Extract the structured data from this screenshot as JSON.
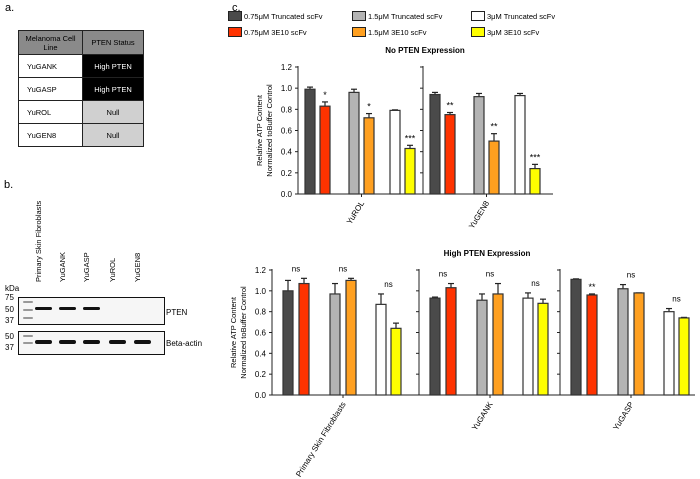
{
  "panel_labels": {
    "a": "a.",
    "b": "b.",
    "c": "c."
  },
  "table": {
    "headers": [
      "Melanoma Cell Line",
      "PTEN Status"
    ],
    "rows": [
      [
        "YuGANK",
        "High PTEN"
      ],
      [
        "YuGASP",
        "High PTEN"
      ],
      [
        "YuROL",
        "Null"
      ],
      [
        "YuGEN8",
        "Null"
      ]
    ]
  },
  "blot": {
    "lanes": [
      "Primary Skin Fibroblasts",
      "YuGANK",
      "YuGASP",
      "YuROL",
      "YuGEN8"
    ],
    "kda_label": "kDa",
    "pten_markers": [
      "75",
      "50",
      "37"
    ],
    "actin_markers": [
      "50",
      "37"
    ],
    "pten_label": "PTEN",
    "actin_label": "Beta-actin",
    "pten_band_present": [
      true,
      true,
      true,
      false,
      false
    ],
    "actin_band_present": [
      true,
      true,
      true,
      true,
      true
    ]
  },
  "legend": [
    {
      "label": "0.75μM  Truncated scFv",
      "color": "#4a4a4a"
    },
    {
      "label": "1.5μM  Truncated scFv",
      "color": "#b4b4b4"
    },
    {
      "label": "3μM  Truncated scFv",
      "color": "#ffffff"
    },
    {
      "label": "0.75μM  3E10 scFv",
      "color": "#ff3300"
    },
    {
      "label": "1.5μM  3E10 scFv",
      "color": "#ffa020"
    },
    {
      "label": "3μM  3E10 scFv",
      "color": "#ffff00"
    }
  ],
  "chart_data": [
    {
      "type": "bar",
      "title": "No PTEN Expression",
      "ylabel": [
        "Relative ATP Content",
        "Normalized toBuffer Control"
      ],
      "ylim": [
        0,
        1.2
      ],
      "yticks": [
        "0.0",
        "0.2",
        "0.4",
        "0.6",
        "0.8",
        "1.0",
        "1.2"
      ],
      "categories": [
        "YuROL",
        "YuGEN8"
      ],
      "series_order": [
        "0.75μM Truncated scFv",
        "0.75μM 3E10 scFv",
        "1.5μM Truncated scFv",
        "1.5μM 3E10 scFv",
        "3μM Truncated scFv",
        "3μM 3E10 scFv"
      ],
      "values": [
        [
          0.99,
          0.83,
          0.96,
          0.72,
          0.79,
          0.43
        ],
        [
          0.94,
          0.75,
          0.92,
          0.5,
          0.93,
          0.24
        ]
      ],
      "errors": [
        [
          0.02,
          0.04,
          0.03,
          0.04,
          0.005,
          0.03
        ],
        [
          0.02,
          0.02,
          0.03,
          0.07,
          0.02,
          0.04
        ]
      ],
      "significance": [
        [
          "*",
          "*",
          "***"
        ],
        [
          "**",
          "**",
          "***"
        ]
      ]
    },
    {
      "type": "bar",
      "title": "High PTEN Expression",
      "ylabel": [
        "Relative ATP Content",
        "Normalized toBuffer Control"
      ],
      "ylim": [
        0,
        1.2
      ],
      "yticks": [
        "0.0",
        "0.2",
        "0.4",
        "0.6",
        "0.8",
        "1.0",
        "1.2"
      ],
      "categories": [
        "Primary Skin Fibroblasts",
        "YuGANK",
        "YuGASP"
      ],
      "series_order": [
        "0.75μM Truncated scFv",
        "0.75μM 3E10 scFv",
        "1.5μM Truncated scFv",
        "1.5μM 3E10 scFv",
        "3μM Truncated scFv",
        "3μM 3E10 scFv"
      ],
      "values": [
        [
          1.0,
          1.07,
          0.97,
          1.1,
          0.87,
          0.64
        ],
        [
          0.93,
          1.03,
          0.91,
          0.97,
          0.93,
          0.88
        ],
        [
          1.11,
          0.96,
          1.02,
          0.98,
          0.8,
          0.74
        ]
      ],
      "errors": [
        [
          0.1,
          0.05,
          0.1,
          0.02,
          0.1,
          0.05
        ],
        [
          0.01,
          0.04,
          0.06,
          0.1,
          0.05,
          0.04
        ],
        [
          0.005,
          0.01,
          0.04,
          0.0,
          0.03,
          0.005
        ]
      ],
      "significance": [
        [
          "ns",
          "ns",
          "ns"
        ],
        [
          "ns",
          "ns",
          "ns"
        ],
        [
          "**",
          "ns",
          "ns"
        ]
      ]
    }
  ]
}
